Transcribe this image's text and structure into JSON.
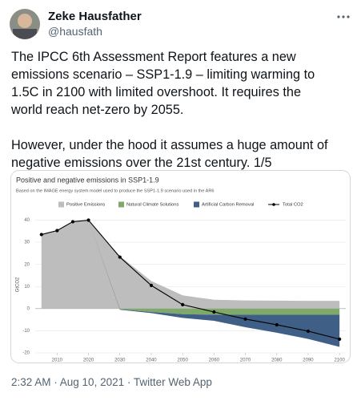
{
  "tweet": {
    "author_name": "Zeke Hausfather",
    "handle": "@hausfath",
    "paragraphs": [
      [
        "The IPCC 6th Assessment Report features a new",
        "emissions scenario – SSP1-1.9 – limiting warming to",
        "1.5C in 2100 with limited overshoot. It requires the",
        "world reach net-zero by 2055."
      ],
      [
        "However, under the hood it assumes a huge amount of",
        "negative emissions over the 21st century. 1/5"
      ]
    ],
    "footer": "2:32 AM · Aug 10, 2021 · Twitter Web App"
  },
  "chart_data": {
    "type": "stacked-area-line",
    "title": "Positive and negative emissions in SSP1-1.9",
    "subtitle": "Based on the IMAGE energy system model used to produce the SSP1-1.9 scenario used in the AR6",
    "y_label": "GtCO2",
    "x": [
      2005,
      2010,
      2015,
      2020,
      2030,
      2040,
      2050,
      2060,
      2070,
      2080,
      2090,
      2100
    ],
    "series": [
      {
        "name": "Positive Emissions",
        "kind": "area",
        "color": "#bdbdbd",
        "values": [
          33.5,
          35.3,
          39.3,
          40,
          23.8,
          12.5,
          6,
          4,
          3.7,
          3.6,
          3.5,
          3.5
        ]
      },
      {
        "name": "Natural Climate Solutions",
        "kind": "area",
        "color": "#7fa96b",
        "values": [
          0,
          0,
          0,
          0,
          -0.3,
          -1.5,
          -2.5,
          -2.8,
          -2.8,
          -2.8,
          -2.8,
          -2.8
        ]
      },
      {
        "name": "Artificial Carbon Removal",
        "kind": "area",
        "color": "#3f5f86",
        "values": [
          0,
          0,
          0,
          0,
          -0.2,
          -0.5,
          -1.7,
          -2.7,
          -5.6,
          -8.1,
          -10.9,
          -14.5
        ]
      },
      {
        "name": "Total CO2",
        "kind": "line",
        "color": "#000000",
        "values": [
          33.5,
          35.3,
          39.3,
          40,
          23.3,
          10.5,
          1.8,
          -1.5,
          -4.7,
          -7.3,
          -10.2,
          -13.8
        ]
      }
    ],
    "xlim": [
      2002,
      2102
    ],
    "xticks": [
      2010,
      2020,
      2030,
      2040,
      2050,
      2060,
      2070,
      2080,
      2090,
      2100
    ],
    "ylim": [
      -20,
      42
    ],
    "yticks": [
      -20,
      -10,
      0,
      10,
      20,
      30,
      40
    ],
    "grid": true
  }
}
